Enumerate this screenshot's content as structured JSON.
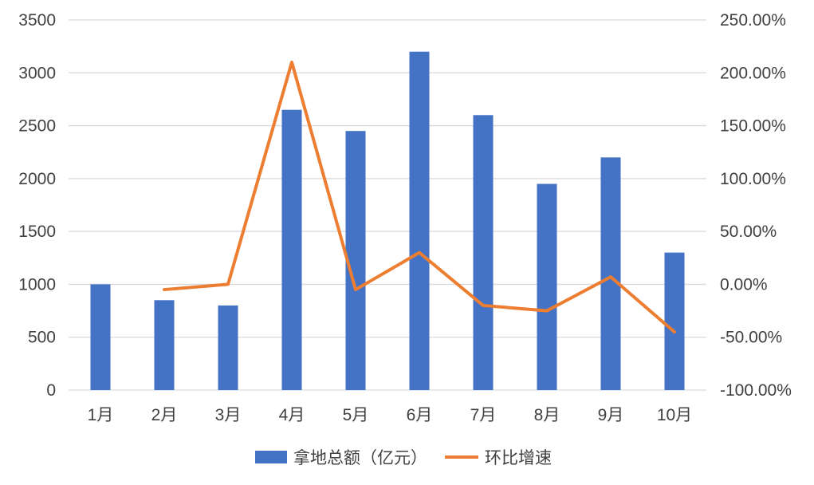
{
  "chart_data": {
    "type": "bar",
    "categories": [
      "1月",
      "2月",
      "3月",
      "4月",
      "5月",
      "6月",
      "7月",
      "8月",
      "9月",
      "10月"
    ],
    "series": [
      {
        "name": "拿地总额（亿元）",
        "type": "bar",
        "axis": "left",
        "color": "#4472C4",
        "values": [
          1000,
          850,
          800,
          2650,
          2450,
          3200,
          2600,
          1950,
          2200,
          1300
        ]
      },
      {
        "name": "环比增速",
        "type": "line",
        "axis": "right",
        "color": "#ED7D31",
        "values": [
          null,
          -0.05,
          0.0,
          2.1,
          -0.05,
          0.3,
          -0.2,
          -0.25,
          0.07,
          -0.45
        ]
      }
    ],
    "y_left": {
      "min": 0,
      "max": 3500,
      "ticks": [
        0,
        500,
        1000,
        1500,
        2000,
        2500,
        3000,
        3500
      ],
      "tick_labels": [
        "0",
        "500",
        "1000",
        "1500",
        "2000",
        "2500",
        "3000",
        "3500"
      ]
    },
    "y_right": {
      "min": -1.0,
      "max": 2.5,
      "ticks": [
        -1.0,
        -0.5,
        0.0,
        0.5,
        1.0,
        1.5,
        2.0,
        2.5
      ],
      "tick_labels": [
        "-100.00%",
        "-50.00%",
        "0.00%",
        "50.00%",
        "100.00%",
        "150.00%",
        "200.00%",
        "250.00%"
      ]
    },
    "grid": true,
    "legend_position": "bottom"
  },
  "colors": {
    "grid": "#D9D9D9",
    "axis_text": "#404040"
  }
}
